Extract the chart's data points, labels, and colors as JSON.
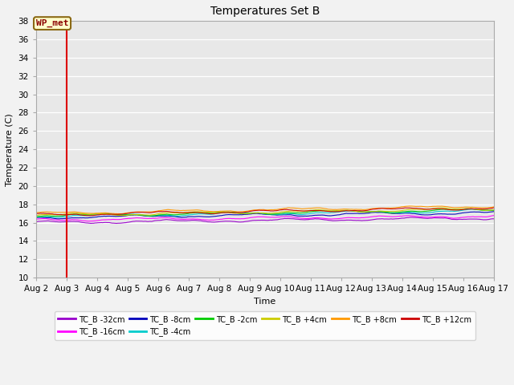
{
  "title": "Temperatures Set B",
  "xlabel": "Time",
  "ylabel": "Temperature (C)",
  "ylim": [
    10,
    38
  ],
  "yticks": [
    10,
    12,
    14,
    16,
    18,
    20,
    22,
    24,
    26,
    28,
    30,
    32,
    34,
    36,
    38
  ],
  "x_start_day": 2,
  "x_end_day": 17,
  "x_tick_days": [
    2,
    3,
    4,
    5,
    6,
    7,
    8,
    9,
    10,
    11,
    12,
    13,
    14,
    15,
    16,
    17
  ],
  "vline_day": 3.0,
  "vline_color": "#dd0000",
  "wp_met_label": "WP_met",
  "series": [
    {
      "name": "TC_B -32cm",
      "color": "#9900cc",
      "base": 16.0,
      "trend": 0.5,
      "seed": 1
    },
    {
      "name": "TC_B -16cm",
      "color": "#ff00ff",
      "base": 16.3,
      "trend": 0.4,
      "seed": 2
    },
    {
      "name": "TC_B -8cm",
      "color": "#0000bb",
      "base": 16.55,
      "trend": 0.55,
      "seed": 3
    },
    {
      "name": "TC_B -4cm",
      "color": "#00cccc",
      "base": 16.7,
      "trend": 0.6,
      "seed": 4
    },
    {
      "name": "TC_B -2cm",
      "color": "#00cc00",
      "base": 16.75,
      "trend": 0.65,
      "seed": 5
    },
    {
      "name": "TC_B +4cm",
      "color": "#cccc00",
      "base": 16.8,
      "trend": 0.7,
      "seed": 6
    },
    {
      "name": "TC_B +8cm",
      "color": "#ff9900",
      "base": 17.0,
      "trend": 0.8,
      "seed": 7
    },
    {
      "name": "TC_B +12cm",
      "color": "#cc0000",
      "base": 16.85,
      "trend": 0.75,
      "seed": 8
    }
  ],
  "bg_color": "#e8e8e8",
  "fig_bg": "#f2f2f2",
  "grid_color": "#ffffff",
  "n_points": 2000,
  "title_fontsize": 10,
  "axis_fontsize": 8,
  "tick_fontsize": 7.5
}
